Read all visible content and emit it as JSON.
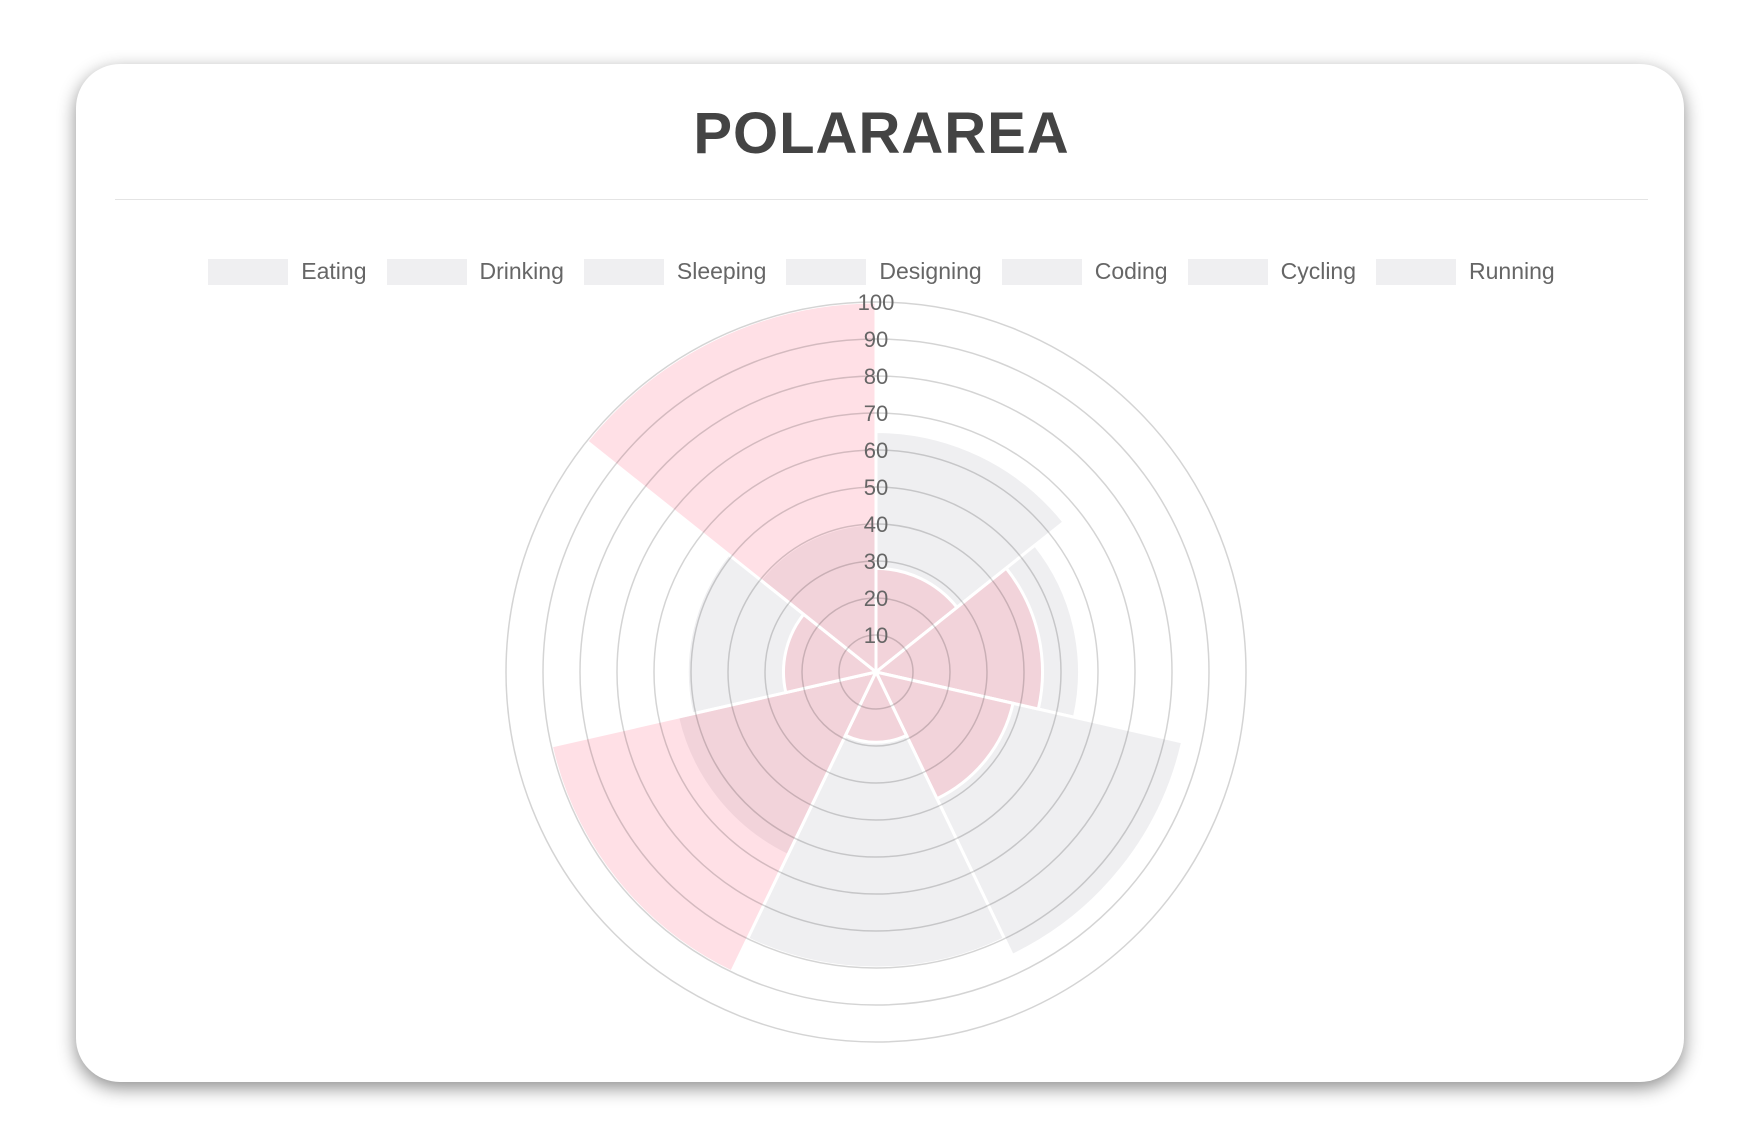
{
  "title": "POLARAREA",
  "chart_data": {
    "type": "polarArea",
    "title": "POLARAREA",
    "categories": [
      "Eating",
      "Drinking",
      "Sleeping",
      "Designing",
      "Coding",
      "Cycling",
      "Running"
    ],
    "series": [
      {
        "values": [
          65,
          55,
          85,
          80,
          55,
          51,
          40
        ],
        "color": "rgba(201,203,207,0.3)"
      },
      {
        "values": [
          28,
          45,
          38,
          19,
          90,
          25,
          100
        ],
        "color": "rgba(255,99,132,0.2)"
      }
    ],
    "r_ticks": [
      "10",
      "20",
      "30",
      "40",
      "50",
      "60",
      "70",
      "80",
      "90",
      "100"
    ],
    "rlim": [
      0,
      100
    ],
    "grid": true,
    "legend": "top"
  }
}
